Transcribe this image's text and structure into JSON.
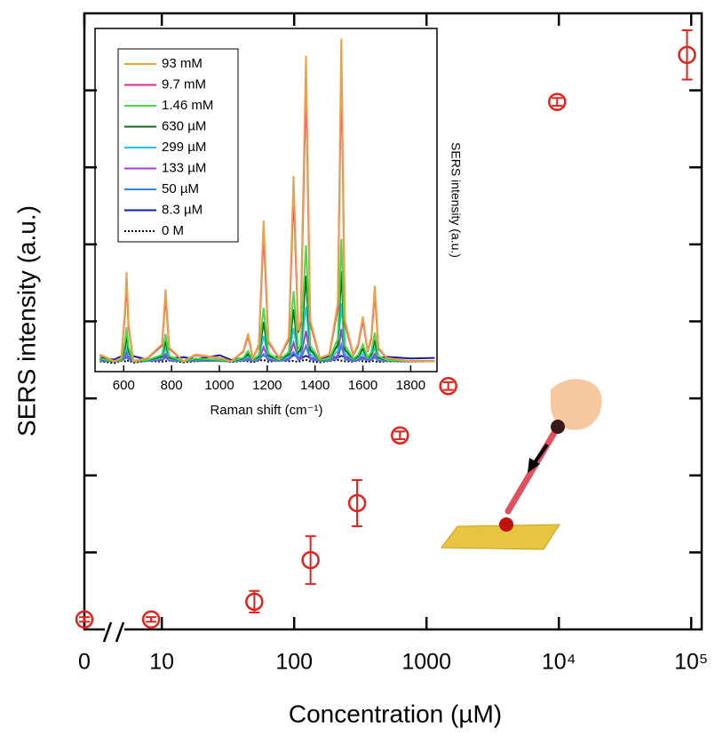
{
  "chart_data": [
    {
      "type": "scatter",
      "x_label": "Concentration (µM)",
      "y_label": "SERS intensity (a.u.)",
      "log_x": true,
      "x_break": true,
      "xlim": [
        2.6,
        120000
      ],
      "xticks": [
        0,
        10,
        100,
        1000,
        {
          "value": 10000,
          "label": "10⁴"
        },
        {
          "value": 100000,
          "label": "10⁵"
        }
      ],
      "ylim": [
        0,
        8
      ],
      "yticks": [
        1,
        2,
        3,
        4,
        5,
        6,
        7
      ],
      "x": [
        0,
        8.3,
        50,
        133,
        299,
        630,
        1460,
        9700,
        93000
      ],
      "series": [
        {
          "color": "#e8201a",
          "values": [
            0.13,
            0.13,
            0.36,
            0.9,
            1.64,
            2.52,
            3.16,
            6.85,
            7.46
          ],
          "errors": [
            0.03,
            0.03,
            0.14,
            0.31,
            0.3,
            0.05,
            0.05,
            0.05,
            0.32
          ]
        }
      ]
    },
    {
      "type": "line",
      "x_label": "Raman shift (cm⁻¹)",
      "y_label": "SERS intensity (a.u.)",
      "xlim": [
        480,
        1910
      ],
      "xticks": [
        600,
        800,
        1000,
        1200,
        1400,
        1600,
        1800
      ],
      "ylim": [
        0,
        100
      ],
      "x": [
        500,
        560,
        590,
        605,
        612,
        620,
        640,
        700,
        760,
        775,
        790,
        850,
        900,
        1000,
        1050,
        1100,
        1120,
        1140,
        1165,
        1185,
        1205,
        1250,
        1290,
        1310,
        1330,
        1340,
        1362,
        1380,
        1420,
        1460,
        1495,
        1510,
        1525,
        1560,
        1580,
        1600,
        1620,
        1635,
        1650,
        1665,
        1700,
        1800,
        1900
      ],
      "series": [
        {
          "name": "93 mM",
          "color": "#f0a040",
          "values": [
            5,
            3,
            4,
            18,
            29,
            14,
            3,
            4,
            8,
            24,
            7,
            3,
            5,
            4,
            3,
            6,
            11,
            4,
            8,
            44,
            9,
            4,
            10,
            57,
            12,
            15,
            92,
            15,
            4,
            5,
            20,
            97,
            15,
            5,
            8,
            16,
            6,
            10,
            25,
            7,
            4,
            3,
            3
          ]
        },
        {
          "name": "9.7 mM",
          "color": "#e0288a",
          "values": [
            4.8,
            3,
            3.9,
            16.8,
            26.9,
            13.1,
            3,
            3.9,
            7.6,
            22.3,
            6.7,
            3,
            4.8,
            3.9,
            3,
            5.8,
            10.4,
            3.9,
            7.6,
            40.7,
            8.5,
            3.9,
            9.4,
            52.7,
            11.3,
            14,
            84.9,
            14,
            3.9,
            4.8,
            18.6,
            89.5,
            14,
            4.8,
            7.6,
            15,
            5.8,
            9.4,
            23.2,
            6.7,
            3.9,
            3,
            3
          ]
        },
        {
          "name": "1.46 mM",
          "color": "#40e040",
          "values": [
            3.8,
            3,
            3.4,
            8.7,
            12.9,
            7.2,
            3,
            3.4,
            4.9,
            11,
            4.5,
            3,
            3.8,
            3.4,
            3,
            4.1,
            6,
            3.4,
            4.9,
            18.6,
            5.3,
            3.4,
            5.7,
            23.5,
            6.4,
            7.6,
            36.8,
            7.6,
            3.4,
            3.8,
            9.5,
            38.7,
            7.6,
            3.8,
            4.9,
            7.9,
            4.1,
            5.7,
            11.4,
            4.5,
            3.4,
            3,
            3
          ]
        },
        {
          "name": "630 µM",
          "color": "#0a6a1a",
          "values": [
            3.6,
            3,
            3.3,
            7.2,
            10.3,
            6.1,
            3,
            3.3,
            4.4,
            8.9,
            4.1,
            3,
            3.6,
            3.3,
            3,
            3.8,
            5.2,
            3.3,
            4.4,
            14.5,
            4.7,
            3.3,
            5,
            18.1,
            5.5,
            6.4,
            27.9,
            6.4,
            3.3,
            3.6,
            7.8,
            29.3,
            6.4,
            3.6,
            4.4,
            6.6,
            3.8,
            5,
            9.2,
            4.1,
            3.3,
            3,
            3
          ]
        },
        {
          "name": "299 µM",
          "color": "#20c8e8",
          "values": [
            3.4,
            3,
            3.2,
            5.7,
            7.7,
            5,
            3,
            3.2,
            3.9,
            6.8,
            3.7,
            3,
            3.4,
            3.2,
            3,
            3.5,
            4.4,
            3.2,
            3.9,
            10.4,
            4.1,
            3.2,
            4.3,
            12.7,
            4.6,
            5.2,
            19,
            5.2,
            3.2,
            3.4,
            6.1,
            19.9,
            5.2,
            3.4,
            3.9,
            5.3,
            3.5,
            4.3,
            7,
            3.7,
            3.2,
            3,
            3
          ]
        },
        {
          "name": "133 µM",
          "color": "#a040c8",
          "values": [
            3.2,
            3,
            3.1,
            4.5,
            5.6,
            4.1,
            3,
            3.1,
            3.5,
            5.1,
            3.4,
            3,
            3.2,
            3.1,
            3,
            3.3,
            3.8,
            3.1,
            3.5,
            7.1,
            3.6,
            3.1,
            3.7,
            8.4,
            3.9,
            4.2,
            11.9,
            4.2,
            3.1,
            3.2,
            4.7,
            12.4,
            4.2,
            3.2,
            3.5,
            4.3,
            3.3,
            3.7,
            5.2,
            3.4,
            3.1,
            3,
            3
          ]
        },
        {
          "name": "50 µM",
          "color": "#3a80e0",
          "values": [
            3.1,
            3,
            3.1,
            3.8,
            4.3,
            3.6,
            3,
            3.1,
            3.3,
            4.1,
            3.2,
            3,
            3.1,
            3.1,
            3,
            3.2,
            3.4,
            3.1,
            3.3,
            5.1,
            3.3,
            3.1,
            3.4,
            5.7,
            3.5,
            3.6,
            7.5,
            3.6,
            3.1,
            3.1,
            3.9,
            7.7,
            3.6,
            3.1,
            3.3,
            3.7,
            3.2,
            3.4,
            4.1,
            3.2,
            3.1,
            3,
            3
          ]
        },
        {
          "name": "8.3 µM",
          "color": "#1020a0",
          "values": [
            4,
            3.5,
            4.5,
            3.8,
            4.2,
            3.6,
            4.5,
            3.5,
            4,
            4.6,
            3.8,
            4.2,
            3.6,
            4.8,
            3.4,
            4,
            4.5,
            3.7,
            4.2,
            4.8,
            3.9,
            4.4,
            3.6,
            4.9,
            4.2,
            3.8,
            4.6,
            4,
            3.7,
            4.5,
            4.1,
            4.6,
            4.2,
            3.8,
            4.4,
            4.1,
            3.7,
            4.4,
            4.2,
            3.9,
            4.3,
            3.8,
            4
          ]
        },
        {
          "name": "0 M",
          "color": "#000000",
          "dash": "dotted",
          "values": [
            3,
            2.5,
            3.2,
            3,
            2.8,
            3.3,
            2.6,
            3.1,
            2.9,
            3,
            3.2,
            2.7,
            3,
            3.3,
            2.8,
            3.1,
            3,
            2.7,
            3.2,
            3.4,
            2.9,
            3.3,
            3,
            3.1,
            2.8,
            3.2,
            3.4,
            3,
            2.7,
            3.1,
            3.4,
            3.2,
            3,
            2.9,
            3.3,
            3,
            2.8,
            3.1,
            3,
            2.8,
            3,
            2.9,
            3
          ]
        }
      ]
    }
  ]
}
